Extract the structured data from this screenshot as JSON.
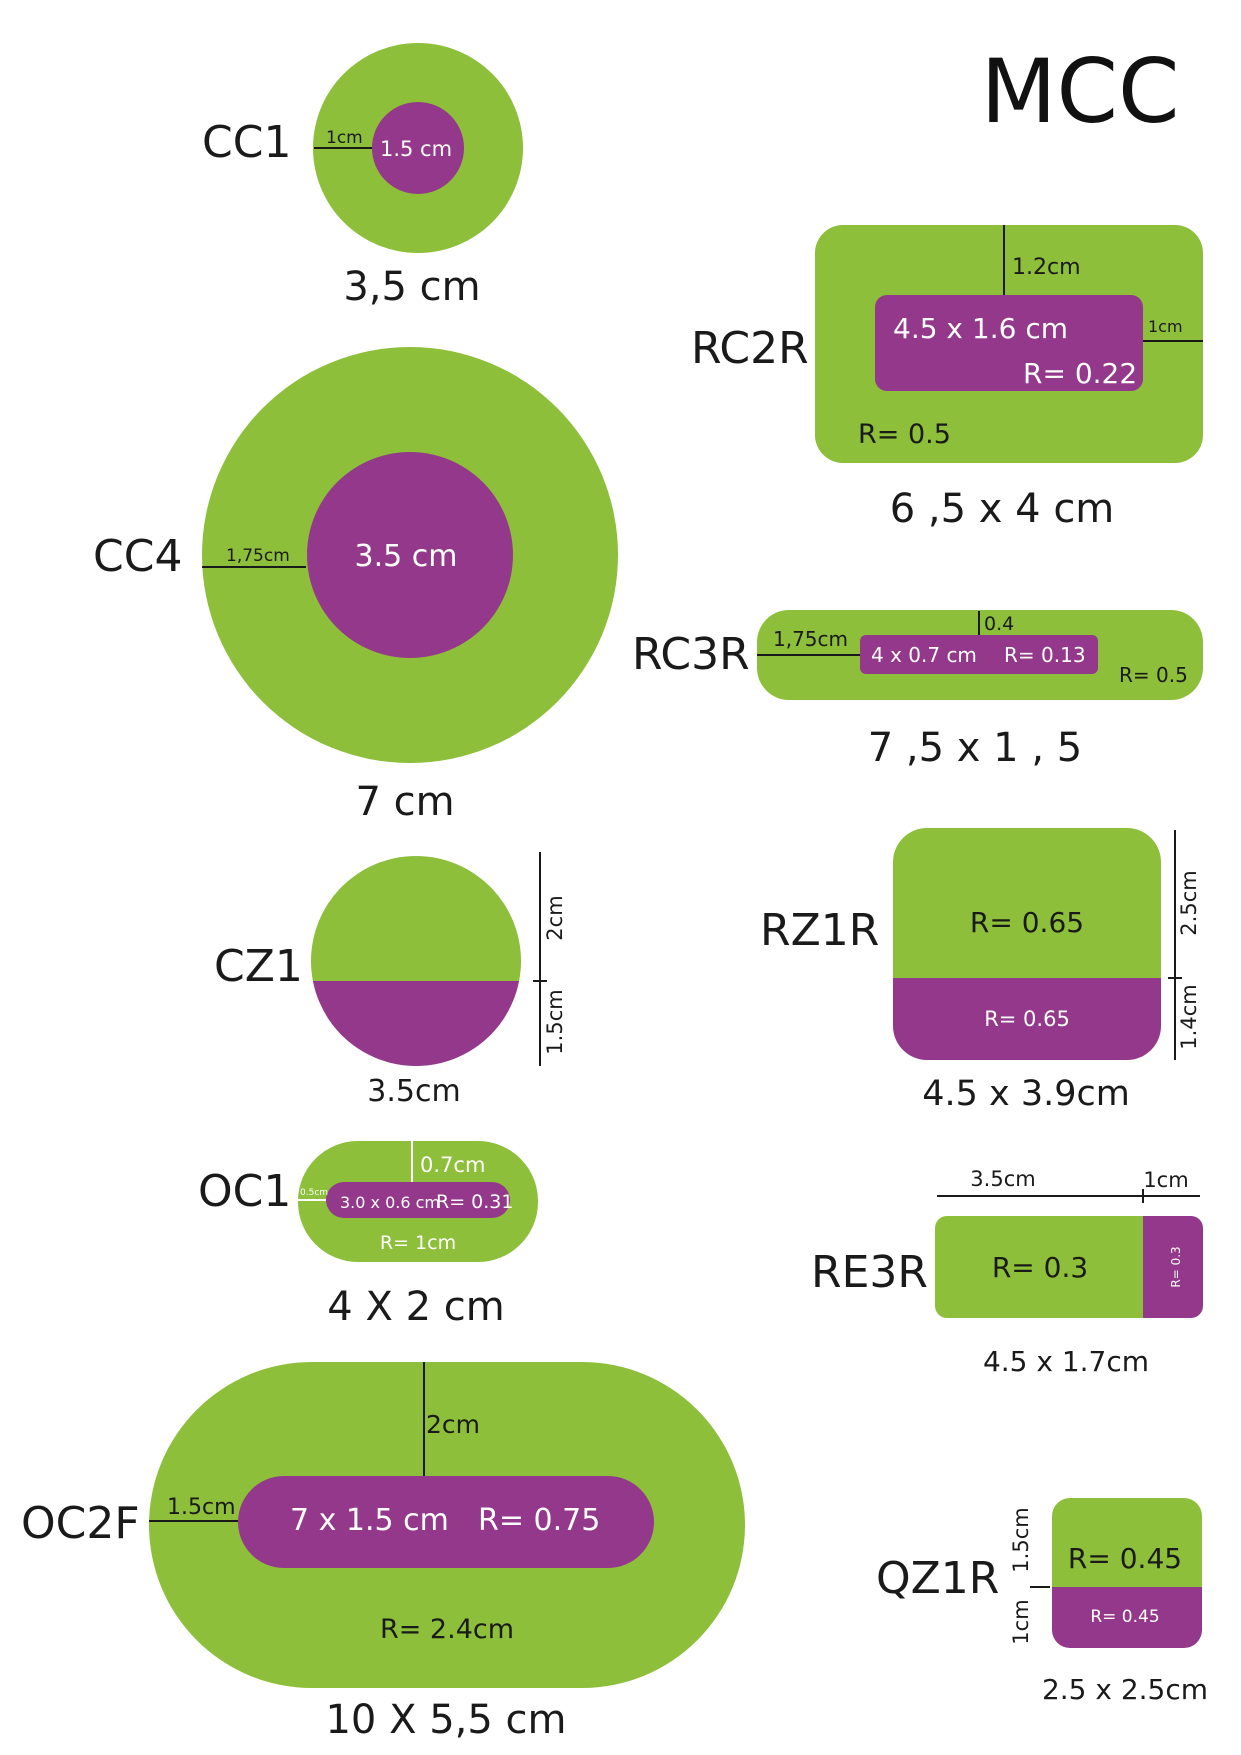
{
  "colors": {
    "outer": "#8dbf3a",
    "inner": "#93388a",
    "text": "#1a1a1a",
    "white": "#ffffff"
  },
  "title": "MCC",
  "shapes": {
    "cc1": {
      "label": "CC1",
      "size": "3,5 cm",
      "inner": "1.5 cm",
      "border": "1cm"
    },
    "cc4": {
      "label": "CC4",
      "size": "7 cm",
      "inner": "3.5 cm",
      "border": "1,75cm"
    },
    "cz1": {
      "label": "CZ1",
      "size": "3.5cm",
      "top": "2cm",
      "bottom": "1.5cm"
    },
    "oc1": {
      "label": "OC1",
      "size": "4 X 2 cm",
      "top": "0.7cm",
      "side": "0.5cm",
      "inner": "3.0 x 0.6 cm",
      "inner_r": "R= 0.31",
      "outer_r": "R= 1cm"
    },
    "oc2f": {
      "label": "OC2F",
      "size": "10 X 5,5 cm",
      "top": "2cm",
      "side": "1.5cm",
      "inner": "7 x 1.5 cm",
      "inner_r": "R= 0.75",
      "outer_r": "R= 2.4cm"
    },
    "rc2r": {
      "label": "RC2R",
      "size": "6 ,5 x 4 cm",
      "top": "1.2cm",
      "side": "1cm",
      "inner": "4.5 x 1.6 cm",
      "inner_r": "R= 0.22",
      "outer_r": "R= 0.5"
    },
    "rc3r": {
      "label": "RC3R",
      "size": "7 ,5 x 1 , 5",
      "top": "0.4",
      "side": "1,75cm",
      "inner": "4 x 0.7 cm",
      "inner_r": "R= 0.13",
      "outer_r": "R= 0.5"
    },
    "rz1r": {
      "label": "RZ1R",
      "size": "4.5 x 3.9cm",
      "top_r": "R= 0.65",
      "bottom_r": "R= 0.65",
      "top": "2.5cm",
      "bottom": "1.4cm"
    },
    "re3r": {
      "label": "RE3R",
      "size": "4.5 x 1.7cm",
      "left": "3.5cm",
      "right": "1cm",
      "left_r": "R= 0.3",
      "right_r": "R= 0.3"
    },
    "qz1r": {
      "label": "QZ1R",
      "size": "2.5 x 2.5cm",
      "top_r": "R= 0.45",
      "bottom_r": "R= 0.45",
      "top": "1.5cm",
      "bottom": "1cm"
    }
  }
}
